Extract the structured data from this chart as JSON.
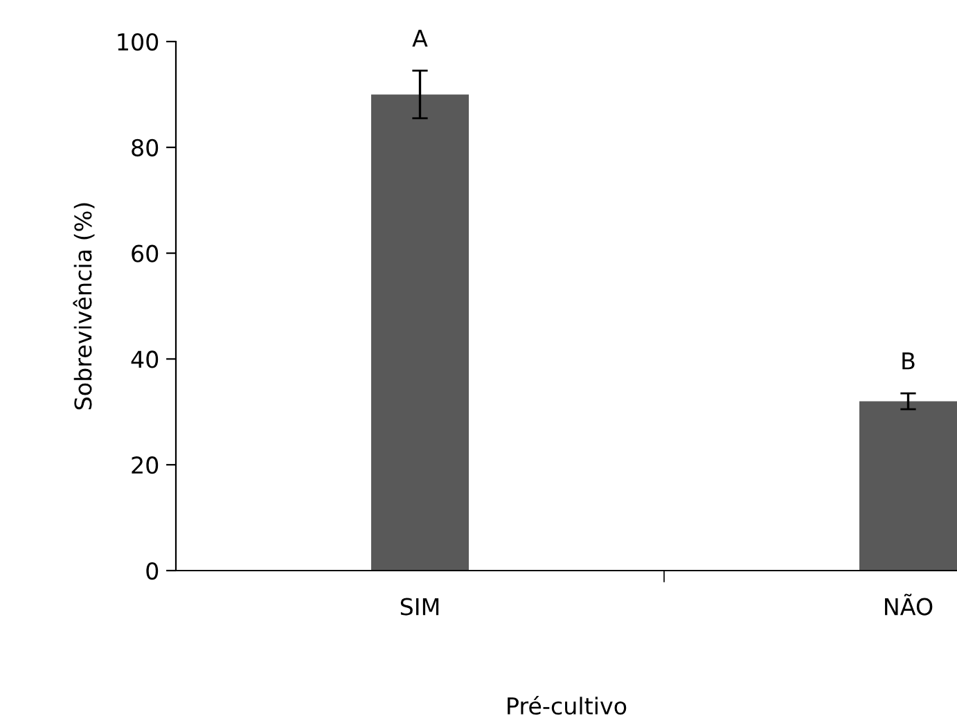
{
  "chart_data": {
    "type": "bar",
    "xlabel": "Pré-cultivo",
    "ylabel": "Sobrevivência (%)",
    "categories": [
      "SIM",
      "NÃO"
    ],
    "values": [
      90,
      32
    ],
    "errors": [
      4.5,
      1.5
    ],
    "color": "#595959",
    "ylim": [
      0,
      100
    ],
    "yticks": [
      0,
      20,
      40,
      60,
      80,
      100
    ],
    "grid": false,
    "annotations": [
      {
        "text": "A",
        "x": "SIM",
        "y": 94.5
      },
      {
        "text": "B",
        "x": "NÃO",
        "y": 33.5
      }
    ]
  }
}
